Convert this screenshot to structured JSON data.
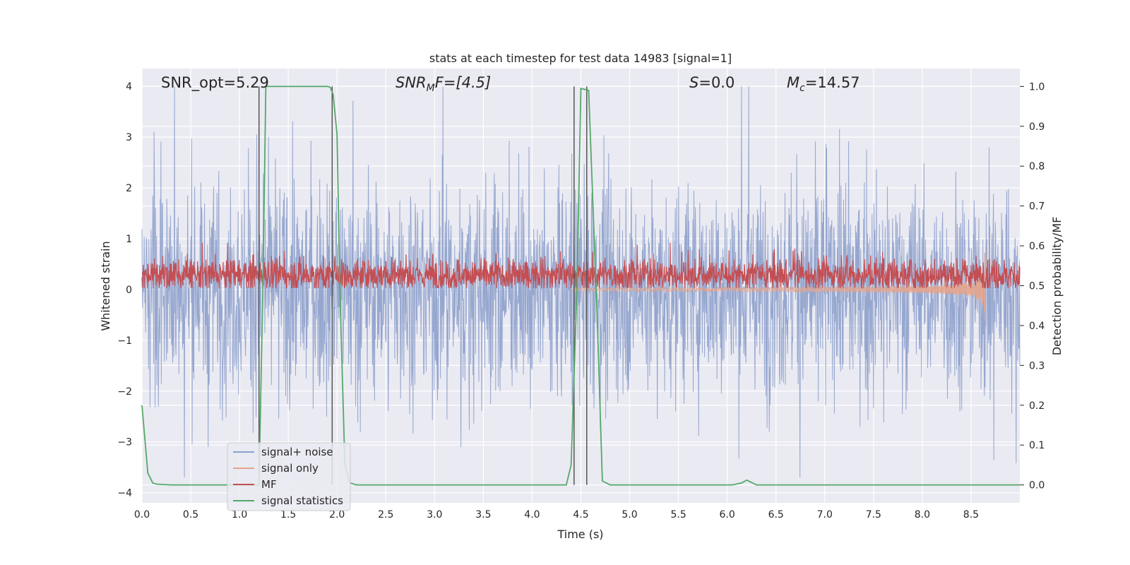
{
  "chart_data": {
    "type": "line",
    "title": "stats at each timestep for test data 14983 [signal=1]",
    "xlabel": "Time (s)",
    "ylabel": "Whitened strain",
    "ylabel_right": "Detection probability/MF",
    "xlim": [
      0.0,
      9.0
    ],
    "ylim": [
      -4.2,
      4.35
    ],
    "ylim_right": [
      -0.045,
      1.045
    ],
    "xticks": [
      0.0,
      0.5,
      1.0,
      1.5,
      2.0,
      2.5,
      3.0,
      3.5,
      4.0,
      4.5,
      5.0,
      5.5,
      6.0,
      6.5,
      7.0,
      7.5,
      8.0,
      8.5
    ],
    "xtick_labels": [
      "0.0",
      "0.5",
      "1.0",
      "1.5",
      "2.0",
      "2.5",
      "3.0",
      "3.5",
      "4.0",
      "4.5",
      "5.0",
      "5.5",
      "6.0",
      "6.5",
      "7.0",
      "7.5",
      "8.0",
      "8.5"
    ],
    "yticks": [
      4,
      3,
      2,
      1,
      0,
      -1,
      -2,
      -3,
      -4
    ],
    "ytick_labels": [
      "4",
      "3",
      "2",
      "1",
      "0",
      "−1",
      "−2",
      "−3",
      "−4"
    ],
    "yticks_right": [
      1.0,
      0.9,
      0.8,
      0.7,
      0.6,
      0.5,
      0.4,
      0.3,
      0.2,
      0.1,
      0.0
    ],
    "ytick_labels_right": [
      "1.0",
      "0.9",
      "0.8",
      "0.7",
      "0.6",
      "0.5",
      "0.4",
      "0.3",
      "0.2",
      "0.1",
      "0.0"
    ],
    "grid": true,
    "legend_position": "lower-left",
    "annotations": {
      "snr_opt": "SNR_opt=5.29",
      "snr_mf_sym": "SNR",
      "snr_mf_sub": "M",
      "snr_mf_rest": "F=[4.5]",
      "s_sym": "S",
      "s_rest": "=0.0",
      "mc_sym": "M",
      "mc_sub": "c",
      "mc_rest": "=14.57"
    },
    "vertical_lines_x": [
      1.2,
      1.95,
      4.43,
      4.56
    ],
    "series": [
      {
        "name": "signal+ noise",
        "color": "#8da0cb",
        "style": "dense noise band",
        "typical_range": [
          -1.8,
          1.8
        ],
        "peak_max": 4.0,
        "peak_min": -3.7
      },
      {
        "name": "signal only",
        "color": "#e5a48c",
        "style": "chirp",
        "chirp_start_x": 4.4,
        "merger_x": 8.65,
        "merger_amplitude": 1.15
      },
      {
        "name": "MF",
        "color": "#c44e52",
        "style": "positive noise band",
        "typical_range": [
          0.05,
          0.55
        ],
        "peak_max": 0.92
      },
      {
        "name": "signal statistics",
        "color": "#55a868",
        "axis": "right",
        "x": [
          0.0,
          0.06,
          0.11,
          0.15,
          0.3,
          1.0,
          1.2,
          1.24,
          1.27,
          1.3,
          1.9,
          1.93,
          1.96,
          2.0,
          2.03,
          2.08,
          2.13,
          2.2,
          4.35,
          4.4,
          4.46,
          4.5,
          4.58,
          4.67,
          4.72,
          4.8,
          6.05,
          6.15,
          6.2,
          6.3,
          9.0
        ],
        "y": [
          0.2,
          0.03,
          0.005,
          0.002,
          0.0,
          0.0,
          0.0,
          0.5,
          1.0,
          1.0,
          1.0,
          0.998,
          0.98,
          0.88,
          0.48,
          0.05,
          0.005,
          0.0,
          0.0,
          0.05,
          0.5,
          0.995,
          0.99,
          0.4,
          0.01,
          0.0,
          0.0,
          0.005,
          0.012,
          0.0,
          0.0
        ]
      }
    ]
  }
}
